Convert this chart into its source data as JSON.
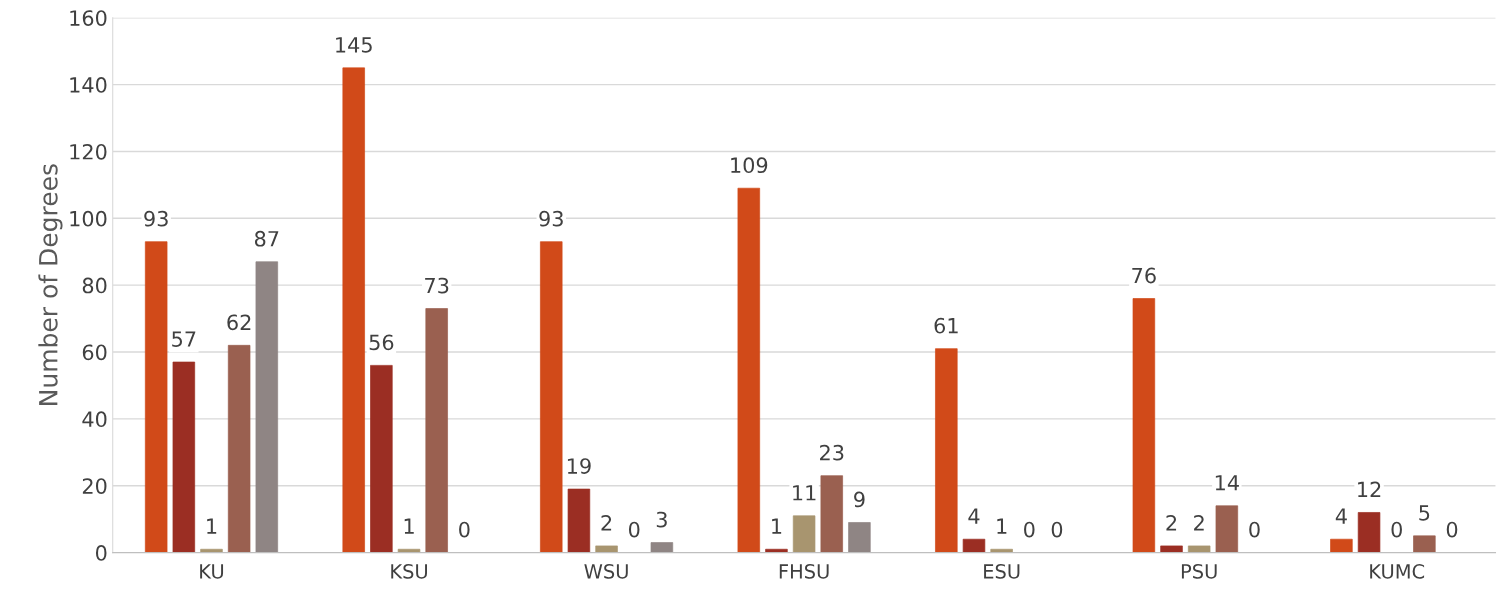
{
  "chart_data": {
    "type": "bar",
    "ylabel": "Number of Degrees",
    "categories": [
      "KU",
      "KSU",
      "WSU",
      "FHSU",
      "ESU",
      "PSU",
      "KUMC"
    ],
    "series": [
      {
        "color": "#d14a19",
        "values": [
          93,
          145,
          93,
          109,
          61,
          76,
          4
        ]
      },
      {
        "color": "#9b2e23",
        "values": [
          57,
          56,
          19,
          1,
          4,
          2,
          12
        ]
      },
      {
        "color": "#a8956f",
        "values": [
          1,
          1,
          2,
          11,
          1,
          2,
          0
        ]
      },
      {
        "color": "#9a6050",
        "values": [
          62,
          73,
          0,
          23,
          0,
          14,
          5
        ]
      },
      {
        "color": "#8f8584",
        "values": [
          87,
          0,
          3,
          9,
          0,
          0,
          0
        ]
      }
    ],
    "ylim": [
      0,
      160
    ],
    "yticks": [
      0,
      20,
      40,
      60,
      80,
      100,
      120,
      140,
      160
    ],
    "grid": "y",
    "data_labels": true,
    "legend": false
  }
}
